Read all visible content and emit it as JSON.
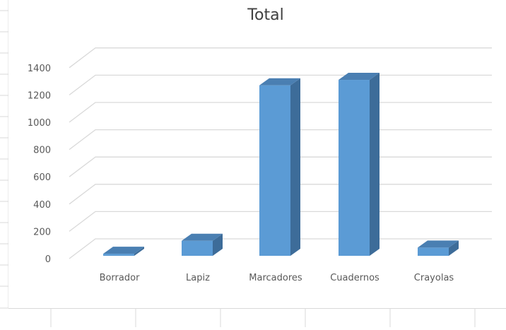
{
  "chart_data": {
    "type": "bar",
    "title": "Total",
    "categories": [
      "Borrador",
      "Lapiz",
      "Marcadores",
      "Cuadernos",
      "Crayolas"
    ],
    "values": [
      15,
      110,
      1250,
      1290,
      60
    ],
    "xlabel": "",
    "ylabel": "",
    "ylim": [
      0,
      1400
    ],
    "yticks": [
      0,
      200,
      400,
      600,
      800,
      1000,
      1200,
      1400
    ],
    "grid": true,
    "legend": "none",
    "style": "3d-column",
    "colors": {
      "bar_front": "#5b9bd5",
      "bar_side": "#3d6c99",
      "bar_top": "#4a7fb2",
      "grid": "#d9d9d9",
      "text": "#595959"
    }
  }
}
